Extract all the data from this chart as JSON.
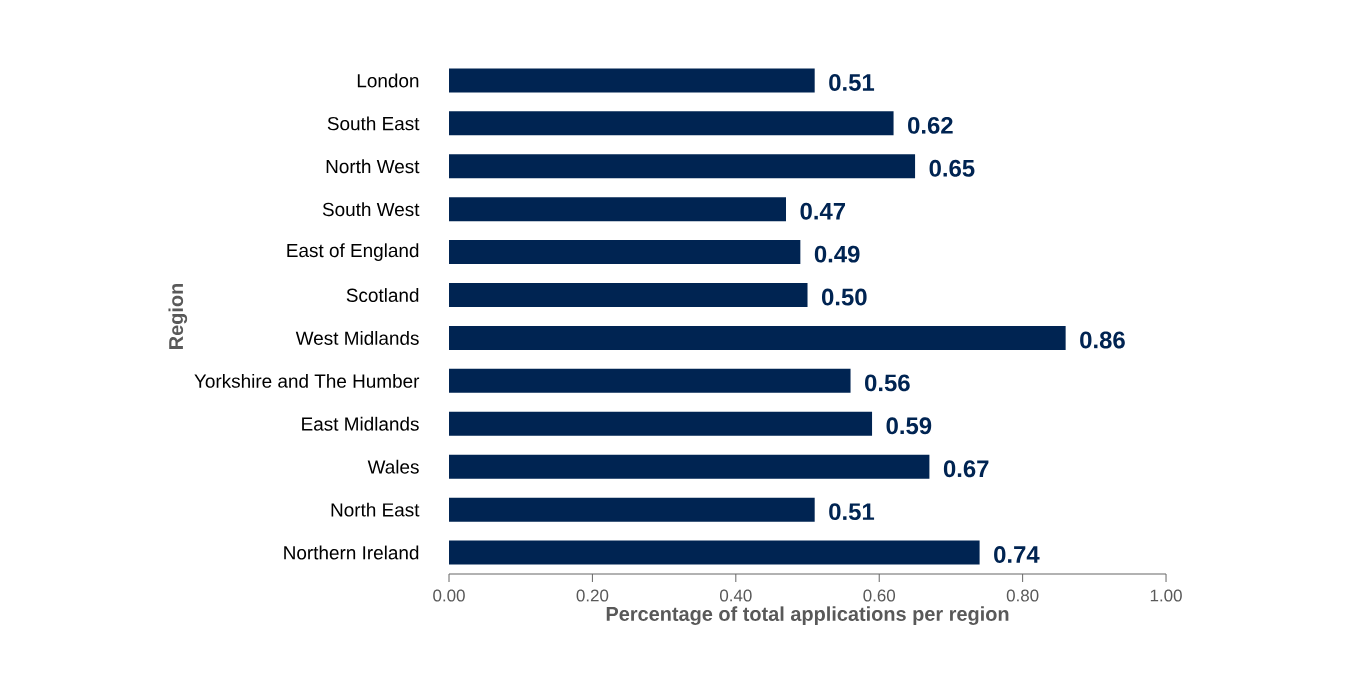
{
  "chart_data": {
    "type": "bar",
    "orientation": "horizontal",
    "xlabel": "Percentage of total applications per region",
    "ylabel": "Region",
    "categories": [
      "London",
      "South East",
      "North West",
      "South West",
      "East of England",
      "Scotland",
      "West Midlands",
      "Yorkshire and The Humber",
      "East Midlands",
      "Wales",
      "North East",
      "Northern Ireland"
    ],
    "values": [
      0.51,
      0.62,
      0.65,
      0.47,
      0.49,
      0.5,
      0.86,
      0.56,
      0.59,
      0.67,
      0.51,
      0.74
    ],
    "value_labels": [
      "0.51",
      "0.62",
      "0.65",
      "0.47",
      "0.49",
      "0.50",
      "0.86",
      "0.56",
      "0.59",
      "0.67",
      "0.51",
      "0.74"
    ],
    "color": "#002452",
    "xlim": [
      0,
      1
    ],
    "xticks": [
      {
        "value": 0,
        "label": "0.00"
      },
      {
        "value": 0.2,
        "label": "0.20"
      },
      {
        "value": 0.4,
        "label": "0.40"
      },
      {
        "value": 0.6,
        "label": "0.60"
      },
      {
        "value": 0.8,
        "label": "0.80"
      },
      {
        "value": 1,
        "label": "1.00"
      }
    ],
    "grid": false
  }
}
